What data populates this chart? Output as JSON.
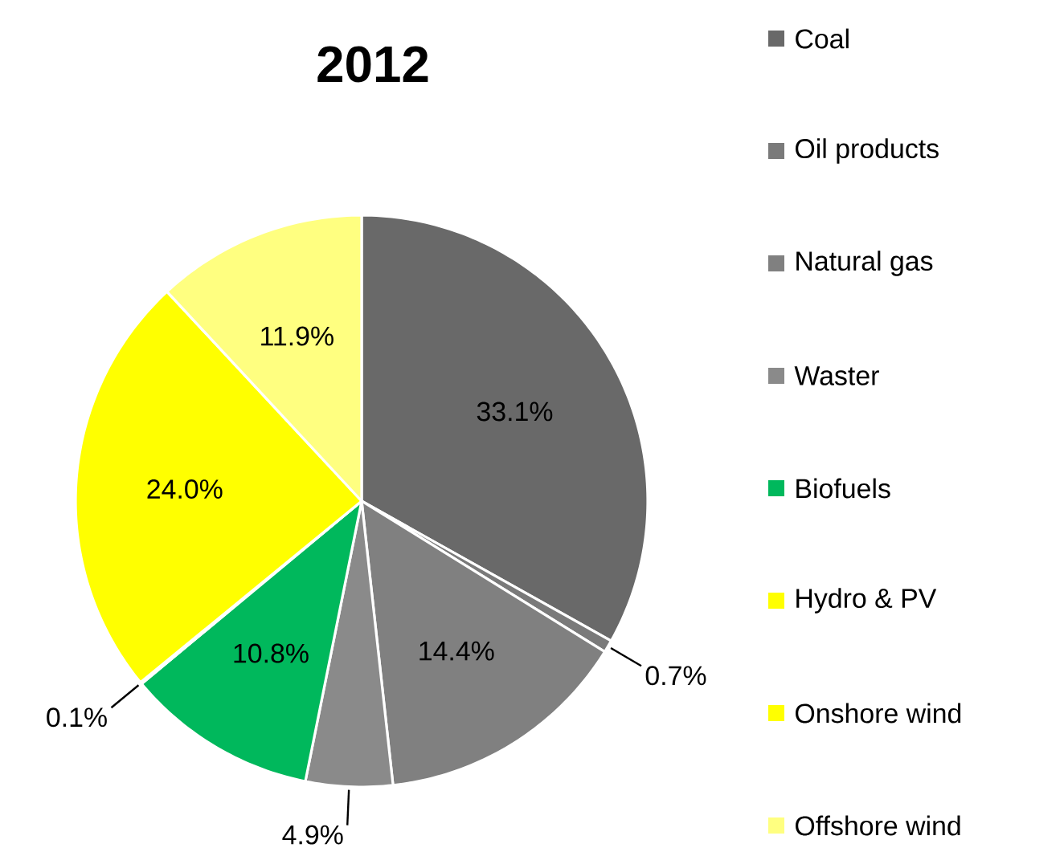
{
  "chart_data": {
    "type": "pie",
    "title": "2012",
    "categories": [
      "Coal",
      "Oil products",
      "Natural gas",
      "Waster",
      "Biofuels",
      "Hydro & PV",
      "Onshore wind",
      "Offshore wind"
    ],
    "values": [
      33.1,
      0.7,
      14.4,
      4.9,
      10.8,
      0.1,
      24.0,
      11.9
    ],
    "colors": [
      "#696969",
      "#7a7a7a",
      "#808080",
      "#8a8a8a",
      "#00b85c",
      "#ffff00",
      "#ffff00",
      "#ffff80"
    ],
    "value_labels": [
      "33.1%",
      "0.7%",
      "14.4%",
      "4.9%",
      "10.8%",
      "0.1%",
      "24.0%",
      "11.9%"
    ],
    "legend": "right"
  }
}
